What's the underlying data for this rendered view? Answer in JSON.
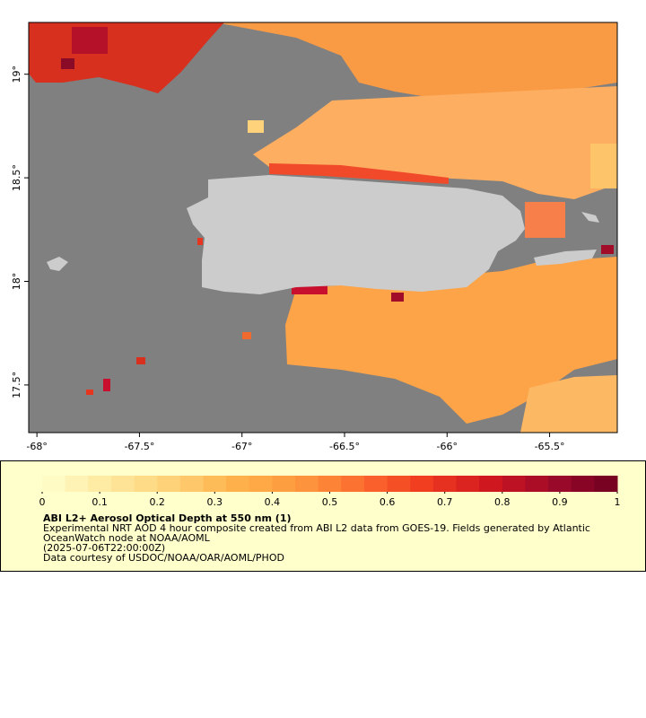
{
  "map": {
    "xlim": [
      -68.04,
      -65.17
    ],
    "ylim": [
      17.27,
      19.25
    ],
    "xticks": [
      {
        "value": -68,
        "label": "-68°"
      },
      {
        "value": -67.5,
        "label": "-67.5°"
      },
      {
        "value": -67,
        "label": "-67°"
      },
      {
        "value": -66.5,
        "label": "-66.5°"
      },
      {
        "value": -66,
        "label": "-66°"
      },
      {
        "value": -65.5,
        "label": "-65.5°"
      }
    ],
    "yticks": [
      {
        "value": 19,
        "label": "19°"
      },
      {
        "value": 18.5,
        "label": "18.5°"
      },
      {
        "value": 18,
        "label": "18°"
      },
      {
        "value": 17.5,
        "label": "17.5°"
      }
    ]
  },
  "colorbar": {
    "lim": [
      0,
      1
    ],
    "ticks": [
      0,
      0.1,
      0.2,
      0.3,
      0.4,
      0.5,
      0.6,
      0.7,
      0.8,
      0.9,
      1
    ],
    "colors": [
      "#ffffcc",
      "#fee9a0",
      "#fed278",
      "#feb24c",
      "#fd9a3e",
      "#fc6b2e",
      "#f03b20",
      "#d0171f",
      "#9e0a2a",
      "#700020"
    ],
    "title": "ABI L2+ Aerosol Optical Depth at 550 nm (1)",
    "lines": [
      "Experimental NRT AOD 4 hour composite created from ABI L2 data from GOES-19. Fields generated by Atlantic",
      "OceanWatch node at NOAA/AOML",
      "(2025-07-06T22:00:00Z)",
      "Data courtesy of USDOC/NOAA/OAR/AOML/PHOD"
    ]
  }
}
